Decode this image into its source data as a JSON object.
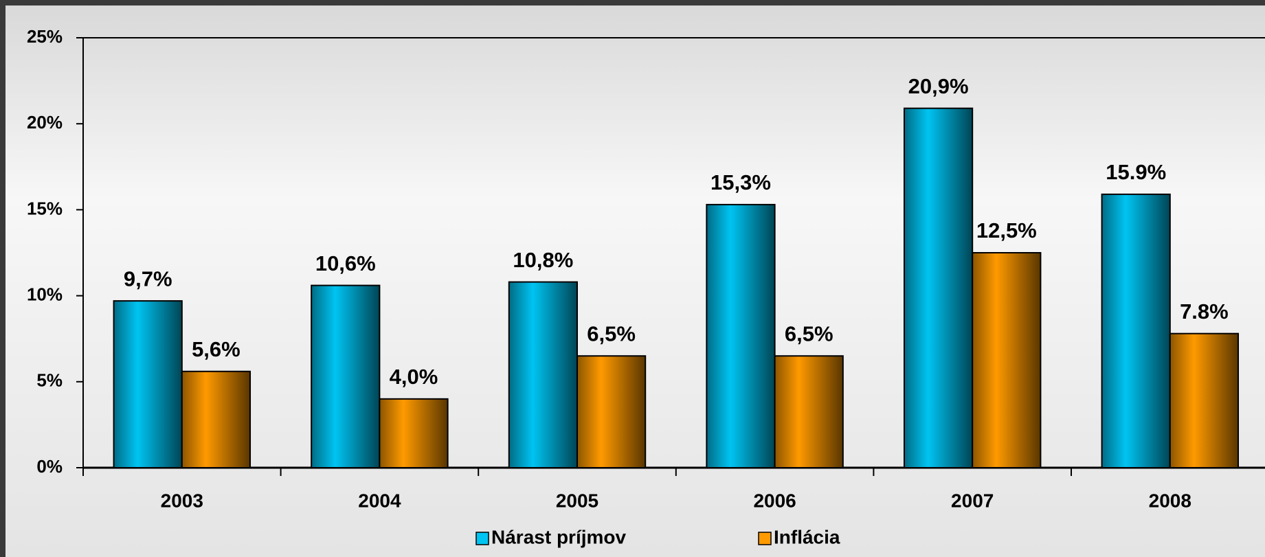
{
  "chart_data": {
    "type": "bar",
    "categories": [
      "2003",
      "2004",
      "2005",
      "2006",
      "2007",
      "2008"
    ],
    "series": [
      {
        "name": "Nárast príjmov",
        "color": "#00c4f2",
        "values": [
          9.7,
          10.6,
          10.8,
          15.3,
          20.9,
          15.9
        ],
        "value_labels": [
          "9,7%",
          "10,6%",
          "10,8%",
          "15,3%",
          "20,9%",
          "15.9%"
        ]
      },
      {
        "name": "Inflácia",
        "color": "#ff9a00",
        "values": [
          5.6,
          4.0,
          6.5,
          6.5,
          12.5,
          7.8
        ],
        "value_labels": [
          "5,6%",
          "4,0%",
          "6,5%",
          "6,5%",
          "12,5%",
          "7.8%"
        ]
      }
    ],
    "ylim": [
      0,
      25
    ],
    "yticks": [
      {
        "value": 0,
        "label": "0%"
      },
      {
        "value": 5,
        "label": "5%"
      },
      {
        "value": 10,
        "label": "10%"
      },
      {
        "value": 15,
        "label": "15%"
      },
      {
        "value": 20,
        "label": "20%"
      },
      {
        "value": 25,
        "label": "25%"
      }
    ],
    "legend": "bottom"
  }
}
